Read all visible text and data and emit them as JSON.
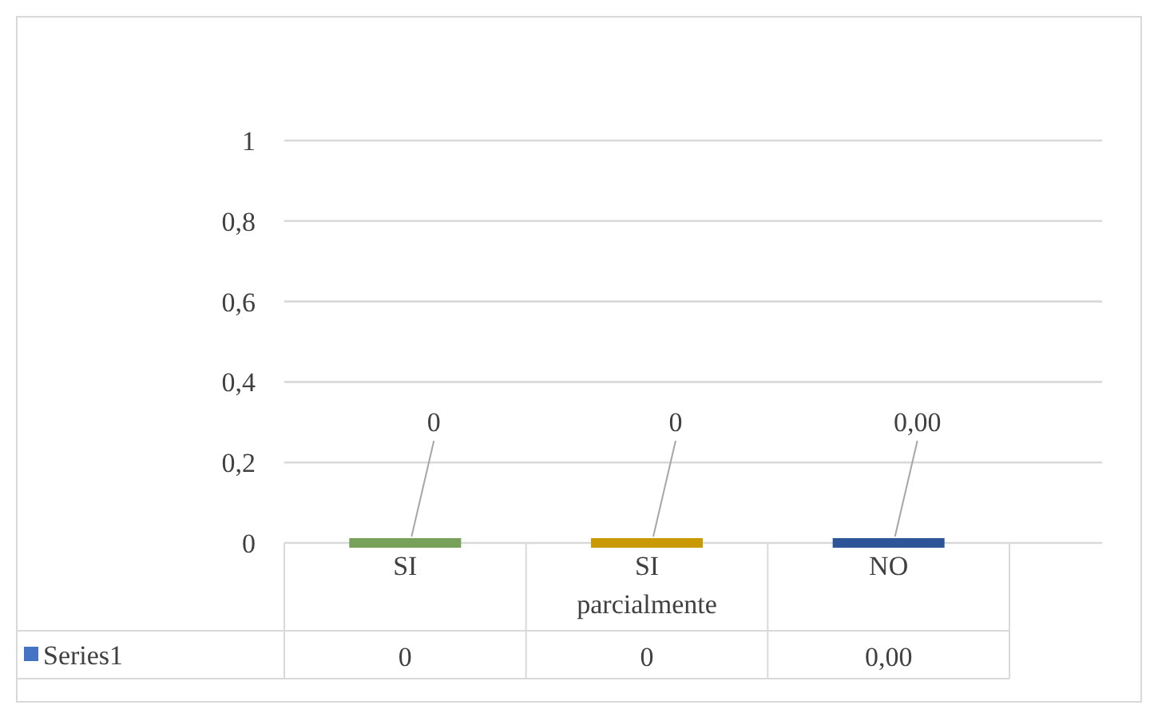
{
  "chart_data": {
    "type": "bar",
    "categories": [
      "SI",
      "SI parcialmente",
      "NO"
    ],
    "series": [
      {
        "name": "Series1",
        "color": "#4472c4",
        "colors": [
          "#77a05a",
          "#c99a06",
          "#2e5597"
        ],
        "values": [
          0,
          0,
          0
        ],
        "value_labels": [
          "0",
          "0",
          "0,00"
        ]
      }
    ],
    "ylim": [
      0,
      1
    ],
    "yticks": [
      0,
      {
        "value": 0.2,
        "label": "0,2"
      },
      {
        "value": 0.4,
        "label": "0,4"
      },
      {
        "value": 0.6,
        "label": "0,6"
      },
      {
        "value": 0.8,
        "label": "0,8"
      },
      1
    ],
    "grid": "y",
    "legend": "bottom"
  }
}
